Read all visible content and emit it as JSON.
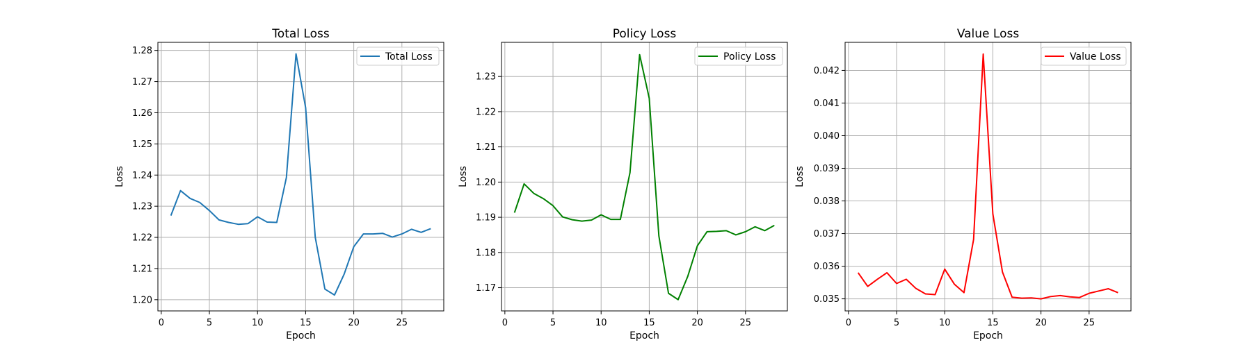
{
  "chart_data": [
    {
      "type": "line",
      "title": "Total Loss",
      "xlabel": "Epoch",
      "ylabel": "Loss",
      "xlim": [
        -0.35,
        29.35
      ],
      "ylim": [
        1.1964,
        1.2826
      ],
      "xticks": [
        0,
        5,
        10,
        15,
        20,
        25
      ],
      "yticks": [
        1.2,
        1.21,
        1.22,
        1.23,
        1.24,
        1.25,
        1.26,
        1.27,
        1.28
      ],
      "ytick_labels": [
        "1.20",
        "1.21",
        "1.22",
        "1.23",
        "1.24",
        "1.25",
        "1.26",
        "1.27",
        "1.28"
      ],
      "grid": true,
      "legend": "top-right",
      "series": [
        {
          "name": "Total Loss",
          "color": "#1f77b4",
          "x": [
            1,
            2,
            3,
            4,
            5,
            6,
            7,
            8,
            9,
            10,
            11,
            12,
            13,
            14,
            15,
            16,
            17,
            18,
            19,
            20,
            21,
            22,
            23,
            24,
            25,
            26,
            27,
            28
          ],
          "y": [
            1.227,
            1.235,
            1.2325,
            1.2312,
            1.2286,
            1.2256,
            1.2248,
            1.2242,
            1.2244,
            1.2266,
            1.2249,
            1.2248,
            1.2392,
            1.2789,
            1.2616,
            1.22,
            1.2034,
            1.2015,
            1.2082,
            1.217,
            1.2211,
            1.2211,
            1.2213,
            1.2201,
            1.2211,
            1.2226,
            1.2216,
            1.2228
          ]
        }
      ]
    },
    {
      "type": "line",
      "title": "Policy Loss",
      "xlabel": "Epoch",
      "ylabel": "Loss",
      "xlim": [
        -0.35,
        29.35
      ],
      "ylim": [
        1.1634,
        1.2397
      ],
      "xticks": [
        0,
        5,
        10,
        15,
        20,
        25
      ],
      "yticks": [
        1.17,
        1.18,
        1.19,
        1.2,
        1.21,
        1.22,
        1.23
      ],
      "ytick_labels": [
        "1.17",
        "1.18",
        "1.19",
        "1.20",
        "1.21",
        "1.22",
        "1.23"
      ],
      "grid": true,
      "legend": "top-right",
      "series": [
        {
          "name": "Policy Loss",
          "color": "#008000",
          "x": [
            1,
            2,
            3,
            4,
            5,
            6,
            7,
            8,
            9,
            10,
            11,
            12,
            13,
            14,
            15,
            16,
            17,
            18,
            19,
            20,
            21,
            22,
            23,
            24,
            25,
            26,
            27,
            28
          ],
          "y": [
            1.1913,
            1.1995,
            1.1968,
            1.1953,
            1.1933,
            1.1901,
            1.1893,
            1.1889,
            1.1892,
            1.1907,
            1.1894,
            1.1894,
            1.2027,
            1.2362,
            1.2238,
            1.1847,
            1.1684,
            1.1666,
            1.1732,
            1.1819,
            1.1859,
            1.186,
            1.1862,
            1.185,
            1.1859,
            1.1873,
            1.1862,
            1.1877
          ]
        }
      ]
    },
    {
      "type": "line",
      "title": "Value Loss",
      "xlabel": "Epoch",
      "ylabel": "Loss",
      "xlim": [
        -0.35,
        29.35
      ],
      "ylim": [
        0.03463,
        0.04286
      ],
      "xticks": [
        0,
        5,
        10,
        15,
        20,
        25
      ],
      "yticks": [
        0.035,
        0.036,
        0.037,
        0.038,
        0.039,
        0.04,
        0.041,
        0.042
      ],
      "ytick_labels": [
        "0.035",
        "0.036",
        "0.037",
        "0.038",
        "0.039",
        "0.040",
        "0.041",
        "0.042"
      ],
      "grid": true,
      "legend": "top-right",
      "series": [
        {
          "name": "Value Loss",
          "color": "#ff0000",
          "x": [
            1,
            2,
            3,
            4,
            5,
            6,
            7,
            8,
            9,
            10,
            11,
            12,
            13,
            14,
            15,
            16,
            17,
            18,
            19,
            20,
            21,
            22,
            23,
            24,
            25,
            26,
            27,
            28
          ],
          "y": [
            0.0358,
            0.03538,
            0.0356,
            0.0358,
            0.03547,
            0.0356,
            0.03532,
            0.03515,
            0.03513,
            0.03591,
            0.03545,
            0.03519,
            0.03682,
            0.0425,
            0.0376,
            0.03582,
            0.03505,
            0.03502,
            0.03503,
            0.035,
            0.03507,
            0.0351,
            0.03506,
            0.03504,
            0.03517,
            0.03524,
            0.03531,
            0.03519
          ]
        }
      ]
    }
  ]
}
